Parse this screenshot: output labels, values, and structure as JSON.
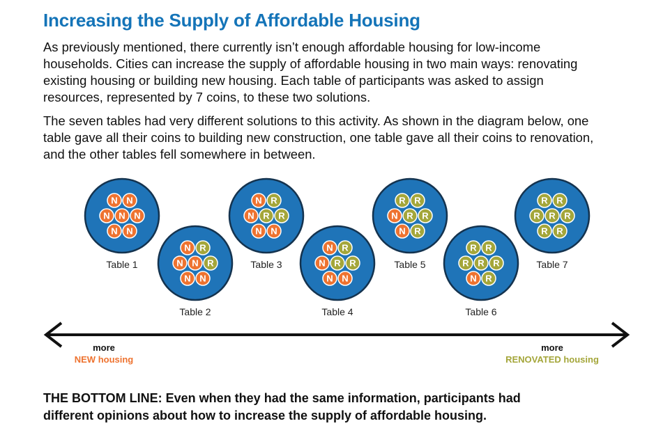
{
  "title": "Increasing the Supply of Affordable Housing",
  "paragraph1_lines": [
    "As previously mentioned, there currently isn’t enough affordable housing for low-income",
    "households. Cities can increase the supply of affordable housing in two main ways: renovating",
    "existing housing or building new housing. Each table of participants was asked to assign",
    "resources, represented by 7 coins, to these two solutions."
  ],
  "paragraph2_lines": [
    "The seven tables had very different solutions to this activity. As shown in the diagram below, one",
    "table gave all their coins to building new construction, one table gave all their coins to renovation,",
    "and the other tables fell somewhere in between."
  ],
  "colors": {
    "title": "#1474b8",
    "table_fill": "#1f74b8",
    "table_stroke": "#14334f",
    "new_coin": "#ee7330",
    "renovated_coin": "#a4a63a"
  },
  "tables": [
    {
      "label": "Table 1",
      "coins": [
        "N",
        "N",
        "N",
        "N",
        "N",
        "N",
        "N"
      ]
    },
    {
      "label": "Table 2",
      "coins": [
        "N",
        "R",
        "N",
        "N",
        "R",
        "N",
        "N"
      ]
    },
    {
      "label": "Table 3",
      "coins": [
        "N",
        "R",
        "N",
        "R",
        "R",
        "N",
        "N"
      ]
    },
    {
      "label": "Table 4",
      "coins": [
        "N",
        "R",
        "N",
        "R",
        "R",
        "N",
        "N"
      ]
    },
    {
      "label": "Table 5",
      "coins": [
        "R",
        "R",
        "N",
        "R",
        "R",
        "N",
        "R"
      ]
    },
    {
      "label": "Table 6",
      "coins": [
        "R",
        "R",
        "R",
        "R",
        "R",
        "N",
        "R"
      ]
    },
    {
      "label": "Table 7",
      "coins": [
        "R",
        "R",
        "R",
        "R",
        "R",
        "R",
        "R"
      ]
    }
  ],
  "arrow": {
    "left_top": "more",
    "left_bottom": "NEW housing",
    "right_top": "more",
    "right_bottom": "RENOVATED housing"
  },
  "bottom_line_lines": [
    "THE BOTTOM LINE: Even when they had the same information, participants had",
    "different opinions about how to increase the supply of affordable housing."
  ]
}
